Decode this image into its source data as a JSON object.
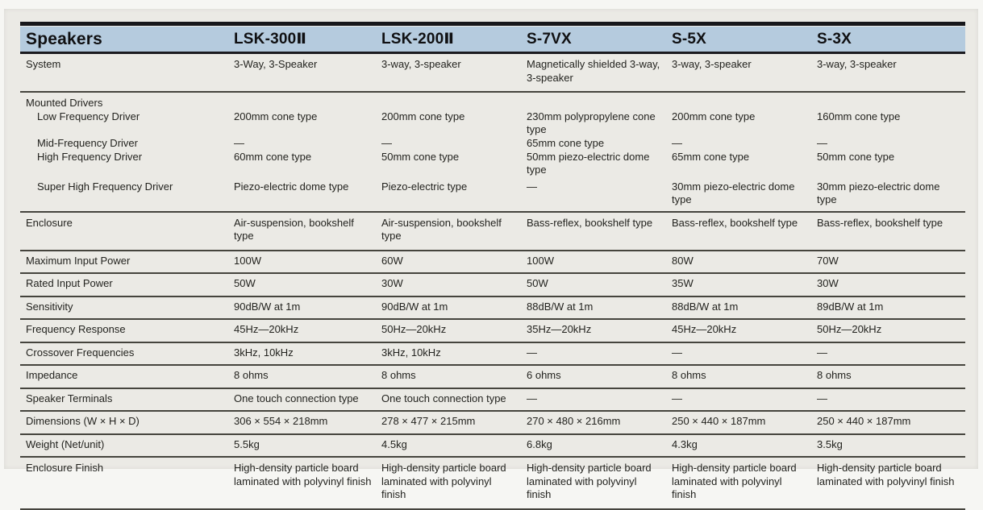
{
  "table": {
    "header": {
      "title": "Speakers",
      "models": [
        "LSK-300Ⅱ",
        "LSK-200Ⅱ",
        "S-7VX",
        "S-5X",
        "S-3X"
      ]
    },
    "rows": {
      "system": {
        "label": "System",
        "values": [
          "3-Way, 3-Speaker",
          "3-way, 3-speaker",
          "Magnetically shielded 3-way, 3-speaker",
          "3-way, 3-speaker",
          "3-way, 3-speaker"
        ]
      },
      "mounted_drivers": {
        "group_label": "Mounted Drivers",
        "low": {
          "label": "Low Frequency Driver",
          "values": [
            "200mm cone type",
            "200mm cone type",
            "230mm polypropylene cone type",
            "200mm cone type",
            "160mm cone type"
          ]
        },
        "mid": {
          "label": "Mid-Frequency Driver",
          "values": [
            "—",
            "—",
            "65mm cone type",
            "—",
            "—"
          ]
        },
        "high": {
          "label": "High Frequency Driver",
          "values": [
            "60mm cone type",
            "50mm cone type",
            "50mm piezo-electric dome type",
            "65mm cone type",
            "50mm cone type"
          ]
        },
        "super_high": {
          "label": "Super High Frequency Driver",
          "values": [
            "Piezo-electric dome type",
            "Piezo-electric type",
            "—",
            "30mm piezo-electric dome type",
            "30mm piezo-electric dome type"
          ]
        }
      },
      "enclosure": {
        "label": "Enclosure",
        "values": [
          "Air-suspension, bookshelf type",
          "Air-suspension, bookshelf type",
          "Bass-reflex, bookshelf type",
          "Bass-reflex, bookshelf type",
          "Bass-reflex, bookshelf type"
        ]
      },
      "maximum_input_power": {
        "label": "Maximum Input Power",
        "values": [
          "100W",
          "60W",
          "100W",
          "80W",
          "70W"
        ]
      },
      "rated_input_power": {
        "label": "Rated Input Power",
        "values": [
          "50W",
          "30W",
          "50W",
          "35W",
          "30W"
        ]
      },
      "sensitivity": {
        "label": "Sensitivity",
        "values": [
          "90dB/W at 1m",
          "90dB/W at 1m",
          "88dB/W at 1m",
          "88dB/W at 1m",
          "89dB/W at 1m"
        ]
      },
      "frequency_response": {
        "label": "Frequency Response",
        "values": [
          "45Hz—20kHz",
          "50Hz—20kHz",
          "35Hz—20kHz",
          "45Hz—20kHz",
          "50Hz—20kHz"
        ]
      },
      "crossover_frequencies": {
        "label": "Crossover Frequencies",
        "values": [
          "3kHz, 10kHz",
          "3kHz, 10kHz",
          "—",
          "—",
          "—"
        ]
      },
      "impedance": {
        "label": "Impedance",
        "values": [
          "8 ohms",
          "8 ohms",
          "6 ohms",
          "8 ohms",
          "8 ohms"
        ]
      },
      "speaker_terminals": {
        "label": "Speaker Terminals",
        "values": [
          "One touch connection type",
          "One touch connection type",
          "—",
          "—",
          "—"
        ]
      },
      "dimensions": {
        "label": "Dimensions (W × H × D)",
        "values": [
          "306 × 554 × 218mm",
          "278 × 477 × 215mm",
          "270 × 480 × 216mm",
          "250 × 440 × 187mm",
          "250 × 440 × 187mm"
        ]
      },
      "weight": {
        "label": "Weight (Net/unit)",
        "values": [
          "5.5kg",
          "4.5kg",
          "6.8kg",
          "4.3kg",
          "3.5kg"
        ]
      },
      "enclosure_finish": {
        "label": "Enclosure Finish",
        "values": [
          "High-density particle board laminated with polyvinyl finish",
          "High-density particle board laminated with polyvinyl finish",
          "High-density particle board laminated with polyvinyl finish",
          "High-density particle board laminated with polyvinyl finish",
          "High-density particle board laminated with polyvinyl finish"
        ]
      }
    },
    "colors": {
      "header_band": "#b5cbde",
      "top_rule": "#17171b",
      "row_rule": "#45443d",
      "paper": "#ebeae5",
      "text": "#23231f"
    }
  }
}
